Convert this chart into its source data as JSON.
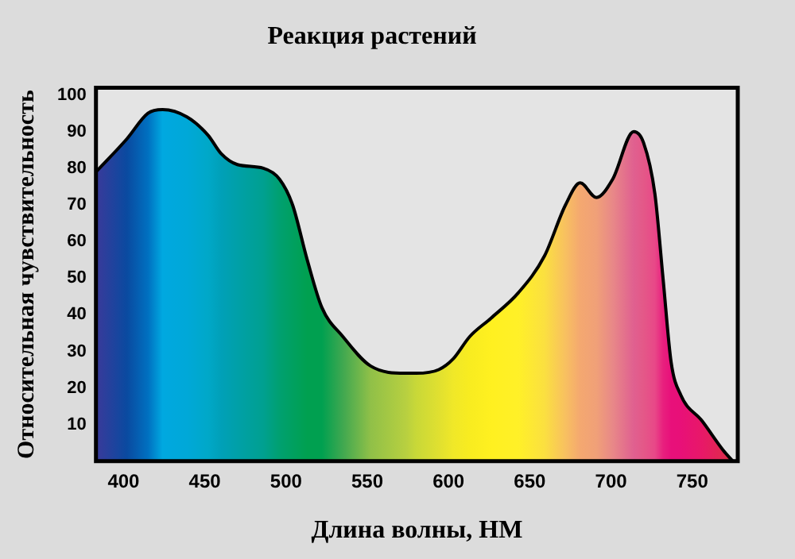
{
  "chart_data": {
    "type": "area",
    "title": "Реакция растений",
    "xlabel": "Длина волны, НМ",
    "ylabel": "Относительная чувствительность",
    "xlim": [
      383,
      778
    ],
    "xticks": [
      400,
      450,
      500,
      550,
      600,
      650,
      700,
      750
    ],
    "ylim": [
      0,
      102
    ],
    "yticks": [
      10,
      20,
      30,
      40,
      50,
      60,
      70,
      80,
      90,
      100
    ],
    "grid": false,
    "legend": false,
    "marker": "none",
    "series": [
      {
        "color": "#000000",
        "x": [
          383,
          402,
          415,
          424,
          439,
          452,
          460,
          470,
          486,
          496,
          504,
          513,
          522,
          535,
          552,
          574,
          580,
          594,
          603,
          613,
          626,
          643,
          659,
          672,
          681,
          691,
          701,
          714,
          720,
          727,
          732,
          737,
          743,
          756,
          769,
          775
        ],
        "values": [
          79,
          88,
          95,
          96,
          94,
          89,
          84,
          81,
          80,
          77,
          70,
          55,
          42,
          34,
          26,
          24,
          24,
          25,
          28,
          34,
          39,
          46,
          56,
          70,
          76,
          72,
          77,
          90,
          87,
          73,
          50,
          27,
          18,
          11,
          3,
          0
        ],
        "colors": [
          "#3a3a9a",
          "#0a4aa0",
          "#0070c0",
          "#00a8e0",
          "#00a8d8",
          "#00a8c8",
          "#00a0b8",
          "#00a0a8",
          "#00a090",
          "#00a070",
          "#00a060",
          "#00a050",
          "#00a050",
          "#40a850",
          "#90c048",
          "#b8d040",
          "#c8d838",
          "#e0e030",
          "#f0e828",
          "#f8ec20",
          "#fff020",
          "#fff028",
          "#fbe040",
          "#f8c060",
          "#f4a870",
          "#f0a078",
          "#e88888",
          "#e06090",
          "#e45888",
          "#e84888",
          "#e8207e",
          "#e8107a",
          "#e81078",
          "#e81868",
          "#e02850",
          "#d83040"
        ]
      }
    ]
  }
}
